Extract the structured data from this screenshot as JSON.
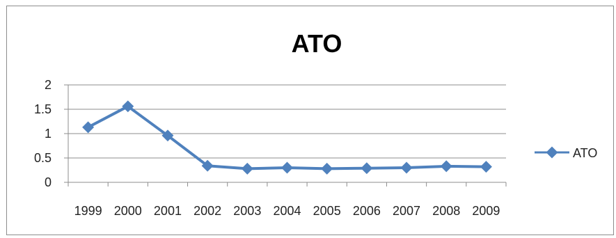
{
  "chart_data": {
    "type": "line",
    "title": "ATO",
    "xlabel": "",
    "ylabel": "",
    "categories": [
      "1999",
      "2000",
      "2001",
      "2002",
      "2003",
      "2004",
      "2005",
      "2006",
      "2007",
      "2008",
      "2009"
    ],
    "series": [
      {
        "name": "ATO",
        "values": [
          1.13,
          1.56,
          0.96,
          0.34,
          0.28,
          0.3,
          0.28,
          0.29,
          0.3,
          0.33,
          0.32
        ]
      }
    ],
    "ylim": [
      0,
      2
    ],
    "yticks": [
      "0",
      "0.5",
      "1",
      "1.5",
      "2"
    ],
    "grid": true,
    "legend_position": "right",
    "colors": {
      "series": "#4f81bd",
      "grid": "#8c8c8c",
      "axis": "#8c8c8c"
    }
  }
}
